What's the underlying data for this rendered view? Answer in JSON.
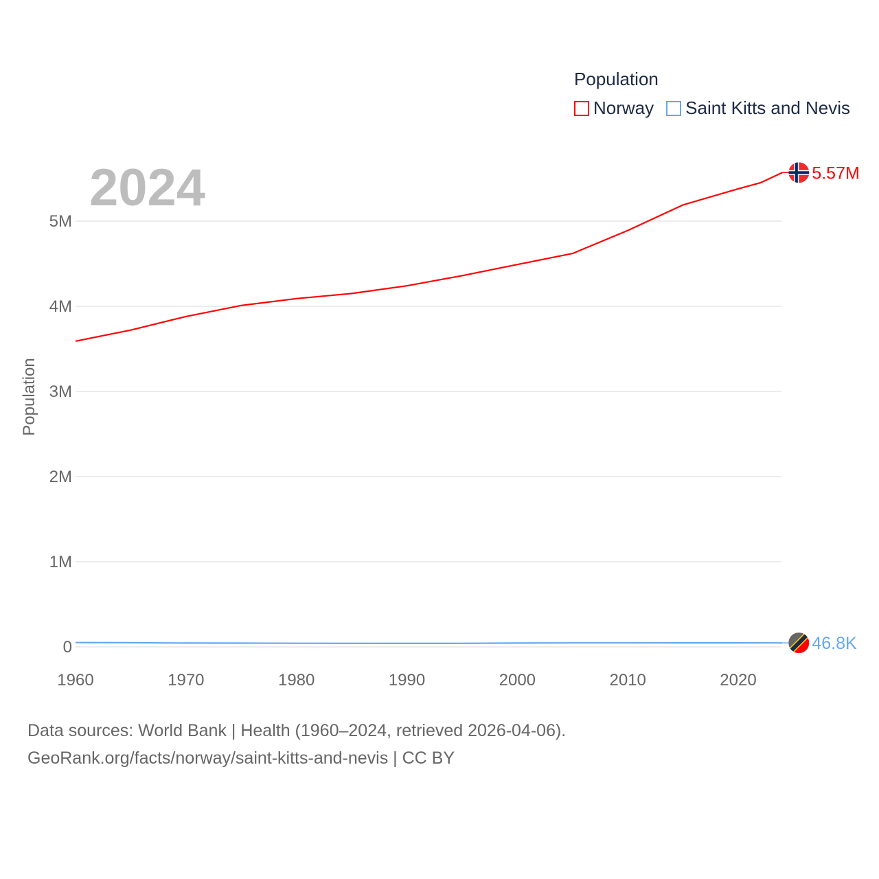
{
  "chart_data": {
    "type": "line",
    "title": "Population",
    "ylabel": "Population",
    "xlabel": "",
    "ylim": [
      0,
      5700000
    ],
    "xlim": [
      1960,
      2024
    ],
    "yticks": [
      {
        "v": 0,
        "label": "0"
      },
      {
        "v": 1000000,
        "label": "1M"
      },
      {
        "v": 2000000,
        "label": "2M"
      },
      {
        "v": 3000000,
        "label": "3M"
      },
      {
        "v": 4000000,
        "label": "4M"
      },
      {
        "v": 5000000,
        "label": "5M"
      }
    ],
    "xticks": [
      "1960",
      "1970",
      "1980",
      "1990",
      "2000",
      "2010",
      "2020"
    ],
    "grid": true,
    "legend_position": "top-right",
    "current_year": "2024",
    "series": [
      {
        "name": "Norway",
        "color": "#ff0000",
        "end_label": "5.57M",
        "flag": "norway-flag-icon",
        "x": [
          1960,
          1965,
          1970,
          1975,
          1980,
          1985,
          1990,
          1995,
          2000,
          2005,
          2010,
          2015,
          2020,
          2022,
          2024
        ],
        "values": [
          3590000,
          3720000,
          3880000,
          4010000,
          4090000,
          4150000,
          4240000,
          4360000,
          4490000,
          4620000,
          4890000,
          5190000,
          5380000,
          5450000,
          5570000
        ]
      },
      {
        "name": "Saint Kitts and Nevis",
        "color": "#64a8f0",
        "end_label": "46.8K",
        "flag": "saint-kitts-and-nevis-flag-icon",
        "x": [
          1960,
          1965,
          1970,
          1975,
          1980,
          1985,
          1990,
          1995,
          2000,
          2005,
          2010,
          2015,
          2020,
          2024
        ],
        "values": [
          51000,
          49000,
          45000,
          44000,
          43000,
          42000,
          41000,
          42000,
          45000,
          47000,
          47000,
          47500,
          47600,
          46800
        ]
      }
    ]
  },
  "footer": {
    "line1": "Data sources: World Bank | Health (1960–2024, retrieved 2026-04-06).",
    "line2": "GeoRank.org/facts/norway/saint-kitts-and-nevis | CC BY"
  }
}
